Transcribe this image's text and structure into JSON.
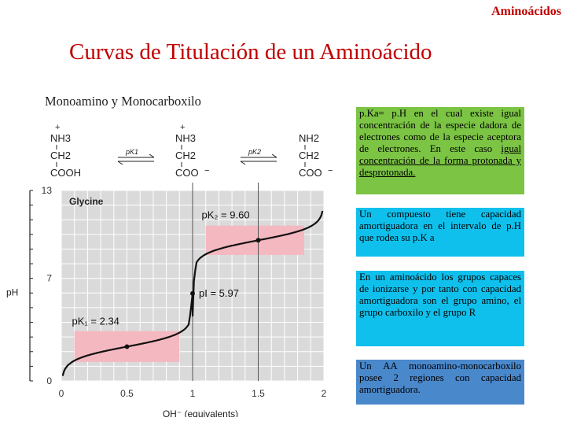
{
  "header": {
    "tag": "Aminoácidos"
  },
  "title": "Curvas de Titulación de un Aminoácido",
  "subtitle": "Monoamino y Monocarboxilo",
  "boxes": {
    "pka_def_plain": "p.Ka= p.H en el cual existe igual concentración de la especie dadora de electrones como de la especie aceptora de electrones. En este caso",
    "pka_def_underlined": "igual concentración de la forma protonada y desprotonada.",
    "buffer_range": "Un compuesto tiene capacidad amortiguadora en el intervalo de p.H que rodea su p.K a",
    "ionizable_groups": "En un aminoácido los grupos capaces de ionizarse y por tanto con capacidad amortiguadora son el grupo amino, el grupo carboxilo y el grupo R",
    "glycine_summary": "Un AA monoamino-monocarboxilo posee 2 regiones con capacidad amortiguadora."
  },
  "species": {
    "s1": {
      "charge": "+",
      "top": "NH3",
      "mid": "CH2",
      "bot": "COOH"
    },
    "s2": {
      "charge": "+",
      "top": "NH3",
      "mid": "CH2",
      "bot": "COO",
      "bot_charge": "−"
    },
    "s3": {
      "top": "NH2",
      "mid": "CH2",
      "bot": "COO",
      "bot_charge": "−"
    },
    "arrow1": "pK1",
    "arrow2": "pK2"
  },
  "colors": {
    "title": "#c00000",
    "plot_bg": "#dadada",
    "buffer_region": "#f4b8c0",
    "green_box": "#7cc444",
    "cyan_box": "#10c0ec",
    "blue_box": "#4a88cc"
  },
  "chart_data": {
    "type": "line",
    "series_label": "Glycine",
    "xlabel": "OH⁻ (equivalents)",
    "ylabel": "pH",
    "xlim": [
      0,
      2
    ],
    "ylim": [
      0,
      13
    ],
    "x_ticks": [
      0,
      0.5,
      1,
      1.5,
      2
    ],
    "x_tick_labels": [
      "0",
      "0.5",
      "1",
      "1.5",
      "2"
    ],
    "y_ticks": [
      0,
      7,
      13
    ],
    "y_tick_labels": [
      "0",
      "7",
      "13"
    ],
    "points": [
      {
        "x": 0.5,
        "y": 2.34,
        "label": "pK₁ = 2.34"
      },
      {
        "x": 1.0,
        "y": 5.97,
        "label": "pI = 5.97"
      },
      {
        "x": 1.5,
        "y": 9.6,
        "label": "pK₂ = 9.60"
      }
    ],
    "buffer_regions": [
      {
        "x": [
          0.1,
          0.9
        ],
        "y": [
          1.3,
          3.4
        ]
      },
      {
        "x": [
          1.1,
          1.85
        ],
        "y": [
          8.6,
          10.6
        ]
      }
    ],
    "vertical_lines": [
      1,
      1.5
    ]
  }
}
